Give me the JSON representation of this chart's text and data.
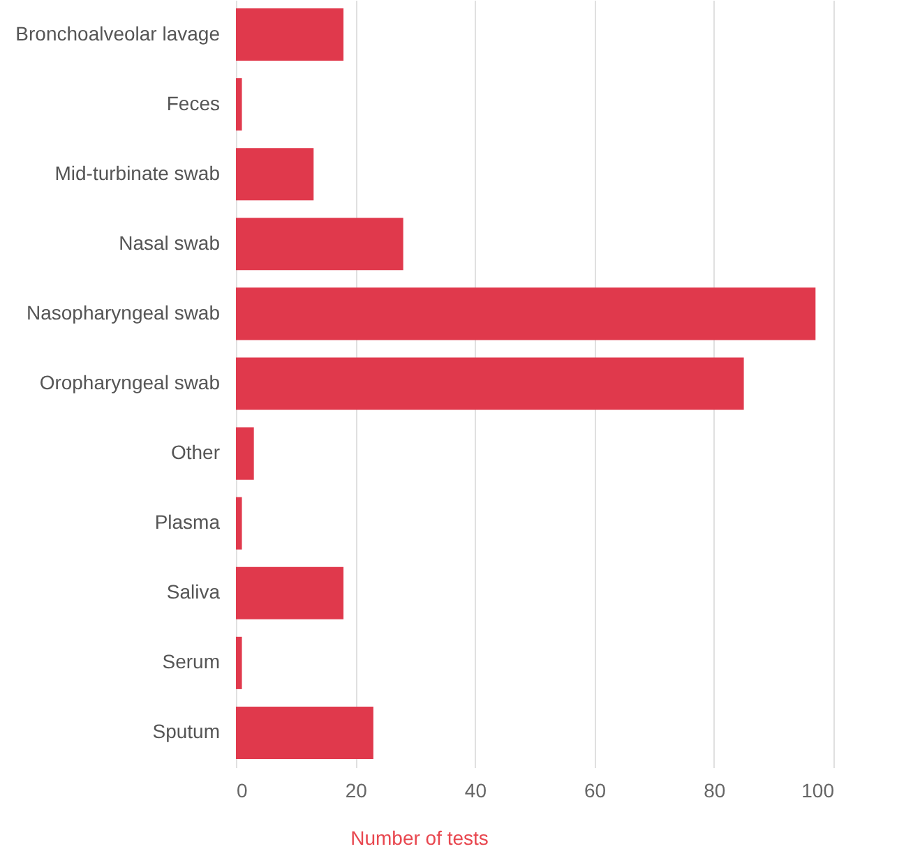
{
  "chart_data": {
    "type": "bar",
    "orientation": "horizontal",
    "xlabel": "Number of tests",
    "categories": [
      "Bronchoalveolar lavage",
      "Feces",
      "Mid-turbinate swab",
      "Nasal swab",
      "Nasopharyngeal swab",
      "Oropharyngeal swab",
      "Other",
      "Plasma",
      "Saliva",
      "Serum",
      "Sputum"
    ],
    "values": [
      18,
      1,
      13,
      28,
      97,
      85,
      3,
      1,
      18,
      1,
      23
    ],
    "color": "#e0394c",
    "xlim": [
      0,
      100
    ],
    "xticks": [
      0,
      20,
      40,
      60,
      80,
      100
    ],
    "grid": "x"
  }
}
